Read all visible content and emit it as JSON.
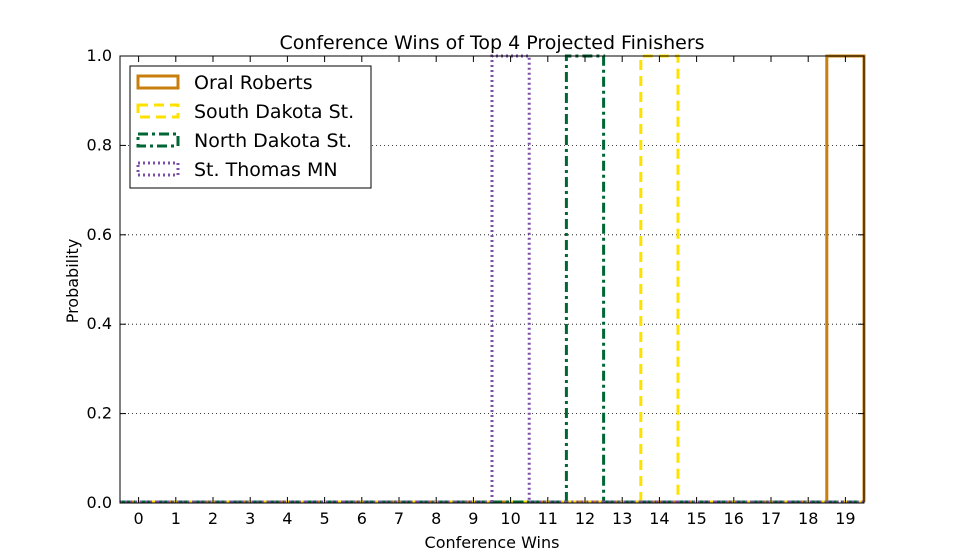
{
  "chart_data": {
    "type": "bar",
    "title": "Conference Wins of Top 4 Projected Finishers",
    "xlabel": "Conference Wins",
    "ylabel": "Probability",
    "categories": [
      "0",
      "1",
      "2",
      "3",
      "4",
      "5",
      "6",
      "7",
      "8",
      "9",
      "10",
      "11",
      "12",
      "13",
      "14",
      "15",
      "16",
      "17",
      "18",
      "19"
    ],
    "x": [
      0,
      1,
      2,
      3,
      4,
      5,
      6,
      7,
      8,
      9,
      10,
      11,
      12,
      13,
      14,
      15,
      16,
      17,
      18,
      19
    ],
    "xlim": [
      -0.5,
      19.5
    ],
    "ylim": [
      0.0,
      1.0
    ],
    "yticks": [
      "0.0",
      "0.2",
      "0.4",
      "0.6",
      "0.8",
      "1.0"
    ],
    "grid": "y-dotted",
    "legend_position": "top-left",
    "series": [
      {
        "name": "Oral Roberts",
        "color": "#C87F0E",
        "style": "solid",
        "values": [
          0,
          0,
          0,
          0,
          0,
          0,
          0,
          0,
          0,
          0,
          0,
          0,
          0,
          0,
          0,
          0,
          0,
          0,
          0,
          1.0
        ]
      },
      {
        "name": "South Dakota St.",
        "color": "#FFE100",
        "style": "dashed",
        "values": [
          0,
          0,
          0,
          0,
          0,
          0,
          0,
          0,
          0,
          0,
          0,
          0,
          0,
          0,
          1.0,
          0,
          0,
          0,
          0,
          0
        ]
      },
      {
        "name": "North Dakota St.",
        "color": "#006633",
        "style": "dashdot",
        "values": [
          0,
          0,
          0,
          0,
          0,
          0,
          0,
          0,
          0,
          0,
          0,
          0,
          1.0,
          0,
          0,
          0,
          0,
          0,
          0,
          0
        ]
      },
      {
        "name": "St. Thomas MN",
        "color": "#7B4FA8",
        "style": "dotted",
        "values": [
          0,
          0,
          0,
          0,
          0,
          0,
          0,
          0,
          0,
          0,
          1.0,
          0,
          0,
          0,
          0,
          0,
          0,
          0,
          0,
          0
        ]
      }
    ]
  }
}
